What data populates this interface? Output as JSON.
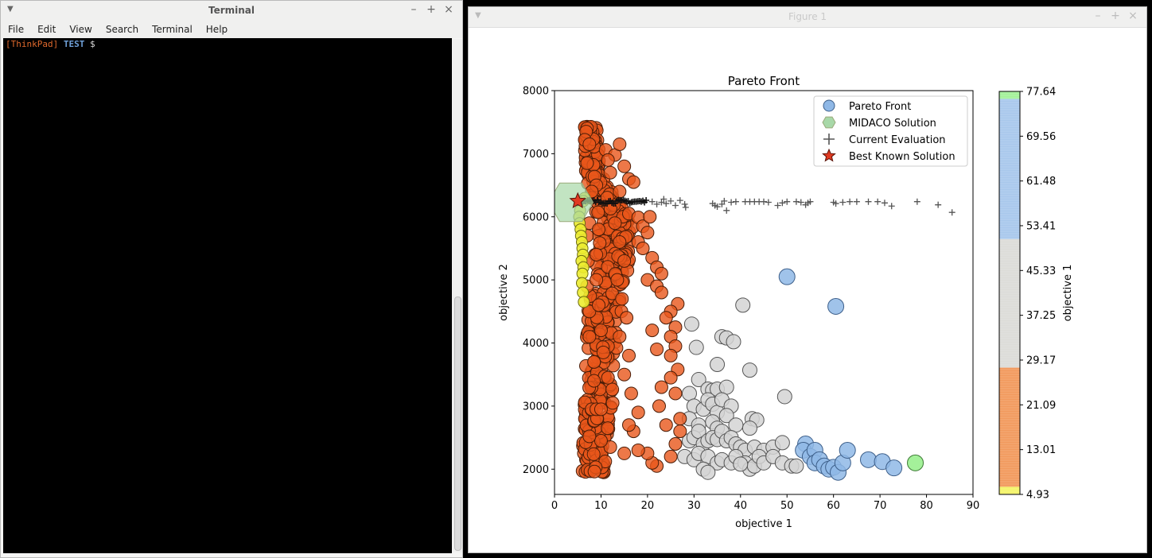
{
  "terminal": {
    "title": "Terminal",
    "menu": [
      "File",
      "Edit",
      "View",
      "Search",
      "Terminal",
      "Help"
    ],
    "prompt_host": "[ThinkPad]",
    "prompt_dir": "TEST",
    "prompt_symbol": "$"
  },
  "figure": {
    "title": "Figure 1"
  },
  "window_buttons": {
    "minimize": "–",
    "maximize": "+",
    "close": "×"
  },
  "colors": {
    "pareto": "#8fb8e6",
    "midaco": "#a8d8a8",
    "current": "#555555",
    "best": "#e03a22",
    "orange": "#e8561a",
    "gray": "#d7d7d7",
    "yellow": "#ecec30"
  },
  "chart_data": {
    "type": "scatter",
    "title": "Pareto Front",
    "xlabel": "objective 1",
    "ylabel": "objective 2",
    "xlim": [
      0,
      90
    ],
    "ylim": [
      1600,
      8000
    ],
    "xticks": [
      "0",
      "10",
      "20",
      "30",
      "40",
      "50",
      "60",
      "70",
      "80",
      "90"
    ],
    "yticks": [
      "2000",
      "3000",
      "4000",
      "5000",
      "6000",
      "7000",
      "8000"
    ],
    "legend": [
      "Pareto Front",
      "MIDACO Solution",
      "Current Evaluation",
      "Best Known Solution"
    ],
    "legend_position": "top-right",
    "colorbar": {
      "label": "objective 1",
      "range": [
        4.93,
        77.64
      ],
      "ticks": [
        "4.93",
        "13.01",
        "21.09",
        "29.17",
        "37.25",
        "45.33",
        "53.41",
        "61.48",
        "69.56",
        "77.64"
      ],
      "bands": [
        {
          "from": 4.93,
          "to": 6.3,
          "color": "#f4f46a"
        },
        {
          "from": 6.3,
          "to": 27.8,
          "color": "#f29a5e"
        },
        {
          "from": 27.8,
          "to": 51.0,
          "color": "#dcdcd8"
        },
        {
          "from": 51.0,
          "to": 76.3,
          "color": "#a9c8ec"
        },
        {
          "from": 76.3,
          "to": 77.64,
          "color": "#a4f19a"
        }
      ]
    },
    "midaco_solution": [
      {
        "x": 3.5,
        "y": 6230
      }
    ],
    "best_known": [
      {
        "x": 5,
        "y": 6250
      }
    ],
    "pareto_front": [
      {
        "x": 50,
        "y": 5050
      },
      {
        "x": 60.5,
        "y": 4580
      },
      {
        "x": 54,
        "y": 2400
      },
      {
        "x": 53.5,
        "y": 2300
      },
      {
        "x": 55,
        "y": 2200
      },
      {
        "x": 56,
        "y": 2300
      },
      {
        "x": 56,
        "y": 2100
      },
      {
        "x": 57,
        "y": 2150
      },
      {
        "x": 58,
        "y": 2050
      },
      {
        "x": 59,
        "y": 2000
      },
      {
        "x": 60,
        "y": 2030
      },
      {
        "x": 61,
        "y": 1950
      },
      {
        "x": 62,
        "y": 2100
      },
      {
        "x": 63,
        "y": 2300
      },
      {
        "x": 67.5,
        "y": 2150
      },
      {
        "x": 70.5,
        "y": 2120
      },
      {
        "x": 73,
        "y": 2020
      }
    ],
    "pareto_highlight": [
      {
        "x": 77.6,
        "y": 2100
      }
    ],
    "gray_points": [
      {
        "x": 29.5,
        "y": 4300
      },
      {
        "x": 30.5,
        "y": 3930
      },
      {
        "x": 36,
        "y": 4100
      },
      {
        "x": 37,
        "y": 4080
      },
      {
        "x": 38.5,
        "y": 4020
      },
      {
        "x": 40.5,
        "y": 4600
      },
      {
        "x": 31,
        "y": 3420
      },
      {
        "x": 35,
        "y": 3660
      },
      {
        "x": 42,
        "y": 3570
      },
      {
        "x": 49.5,
        "y": 3150
      },
      {
        "x": 29,
        "y": 3200
      },
      {
        "x": 33,
        "y": 3270
      },
      {
        "x": 34,
        "y": 3250
      },
      {
        "x": 35,
        "y": 3270
      },
      {
        "x": 37,
        "y": 3300
      },
      {
        "x": 30,
        "y": 3000
      },
      {
        "x": 32,
        "y": 2950
      },
      {
        "x": 33,
        "y": 3100
      },
      {
        "x": 34,
        "y": 3030
      },
      {
        "x": 35,
        "y": 2900
      },
      {
        "x": 36,
        "y": 3100
      },
      {
        "x": 38,
        "y": 3000
      },
      {
        "x": 29,
        "y": 2800
      },
      {
        "x": 31,
        "y": 2700
      },
      {
        "x": 34,
        "y": 2750
      },
      {
        "x": 35,
        "y": 2650
      },
      {
        "x": 37,
        "y": 2850
      },
      {
        "x": 39,
        "y": 2700
      },
      {
        "x": 42.5,
        "y": 2800
      },
      {
        "x": 43.5,
        "y": 2780
      },
      {
        "x": 42,
        "y": 2650
      },
      {
        "x": 29,
        "y": 2450
      },
      {
        "x": 30,
        "y": 2500
      },
      {
        "x": 31,
        "y": 2600
      },
      {
        "x": 32,
        "y": 2400
      },
      {
        "x": 33,
        "y": 2450
      },
      {
        "x": 34,
        "y": 2500
      },
      {
        "x": 35,
        "y": 2470
      },
      {
        "x": 36,
        "y": 2600
      },
      {
        "x": 37,
        "y": 2450
      },
      {
        "x": 38,
        "y": 2500
      },
      {
        "x": 39,
        "y": 2400
      },
      {
        "x": 40,
        "y": 2350
      },
      {
        "x": 41,
        "y": 2300
      },
      {
        "x": 43,
        "y": 2350
      },
      {
        "x": 45,
        "y": 2300
      },
      {
        "x": 47,
        "y": 2350
      },
      {
        "x": 49,
        "y": 2420
      },
      {
        "x": 28,
        "y": 2200
      },
      {
        "x": 30,
        "y": 2150
      },
      {
        "x": 31,
        "y": 2250
      },
      {
        "x": 33,
        "y": 2200
      },
      {
        "x": 35,
        "y": 2100
      },
      {
        "x": 36,
        "y": 2150
      },
      {
        "x": 38,
        "y": 2100
      },
      {
        "x": 39,
        "y": 2200
      },
      {
        "x": 41,
        "y": 2100
      },
      {
        "x": 42,
        "y": 2000
      },
      {
        "x": 43,
        "y": 2050
      },
      {
        "x": 44,
        "y": 2200
      },
      {
        "x": 45,
        "y": 2100
      },
      {
        "x": 47,
        "y": 2200
      },
      {
        "x": 49,
        "y": 2100
      },
      {
        "x": 51,
        "y": 2050
      },
      {
        "x": 52,
        "y": 2050
      },
      {
        "x": 32,
        "y": 2000
      },
      {
        "x": 33,
        "y": 1950
      },
      {
        "x": 40,
        "y": 2080
      }
    ],
    "yellow_points": [
      {
        "x": 5.5,
        "y": 6100
      },
      {
        "x": 5.3,
        "y": 6000
      },
      {
        "x": 5.4,
        "y": 5900
      },
      {
        "x": 5.6,
        "y": 5800
      },
      {
        "x": 5.7,
        "y": 5700
      },
      {
        "x": 5.9,
        "y": 5600
      },
      {
        "x": 6.0,
        "y": 5500
      },
      {
        "x": 6.1,
        "y": 5400
      },
      {
        "x": 5.8,
        "y": 5300
      },
      {
        "x": 6.2,
        "y": 5200
      },
      {
        "x": 6.0,
        "y": 5100
      },
      {
        "x": 5.9,
        "y": 4950
      },
      {
        "x": 6.1,
        "y": 4800
      },
      {
        "x": 6.3,
        "y": 4650
      },
      {
        "x": 6.5,
        "y": 6300
      },
      {
        "x": 6.2,
        "y": 6250
      }
    ],
    "orange_band": [
      {
        "y0": 1950,
        "y1": 7450,
        "x_lo": [
          6,
          6.2,
          6.5,
          7,
          8,
          9.5,
          6.6,
          6.4
        ],
        "x_hi": [
          11,
          12,
          13,
          14,
          16,
          17,
          10,
          9
        ]
      }
    ],
    "orange_points": [
      {
        "x": 7,
        "y": 7400
      },
      {
        "x": 6.8,
        "y": 7350
      },
      {
        "x": 6.5,
        "y": 7220
      },
      {
        "x": 7.5,
        "y": 7150
      },
      {
        "x": 11,
        "y": 7060
      },
      {
        "x": 13,
        "y": 6980
      },
      {
        "x": 14,
        "y": 7150
      },
      {
        "x": 11.5,
        "y": 6900
      },
      {
        "x": 7,
        "y": 6850
      },
      {
        "x": 15,
        "y": 6800
      },
      {
        "x": 12,
        "y": 6700
      },
      {
        "x": 16,
        "y": 6600
      },
      {
        "x": 17,
        "y": 6550
      },
      {
        "x": 9,
        "y": 6500
      },
      {
        "x": 8,
        "y": 6400
      },
      {
        "x": 14,
        "y": 6400
      },
      {
        "x": 16,
        "y": 6050
      },
      {
        "x": 18,
        "y": 5990
      },
      {
        "x": 19,
        "y": 5850
      },
      {
        "x": 20,
        "y": 5750
      },
      {
        "x": 18,
        "y": 5600
      },
      {
        "x": 19,
        "y": 5500
      },
      {
        "x": 21,
        "y": 5350
      },
      {
        "x": 22,
        "y": 5200
      },
      {
        "x": 23,
        "y": 5100
      },
      {
        "x": 20,
        "y": 5000
      },
      {
        "x": 22,
        "y": 4900
      },
      {
        "x": 23,
        "y": 4800
      },
      {
        "x": 26.5,
        "y": 4620
      },
      {
        "x": 25,
        "y": 4500
      },
      {
        "x": 24,
        "y": 4400
      },
      {
        "x": 26,
        "y": 4250
      },
      {
        "x": 25,
        "y": 4100
      },
      {
        "x": 26,
        "y": 3950
      },
      {
        "x": 25,
        "y": 3800
      },
      {
        "x": 26.5,
        "y": 3580
      },
      {
        "x": 25,
        "y": 3450
      },
      {
        "x": 26,
        "y": 3200
      },
      {
        "x": 27,
        "y": 2800
      },
      {
        "x": 27,
        "y": 2600
      },
      {
        "x": 26,
        "y": 2400
      },
      {
        "x": 25,
        "y": 2200
      },
      {
        "x": 22,
        "y": 2050
      },
      {
        "x": 21,
        "y": 2100
      },
      {
        "x": 20,
        "y": 2250
      },
      {
        "x": 18,
        "y": 2300
      },
      {
        "x": 15,
        "y": 2250
      },
      {
        "x": 12,
        "y": 2350
      },
      {
        "x": 10,
        "y": 2450
      },
      {
        "x": 7.5,
        "y": 2520
      },
      {
        "x": 8,
        "y": 2950
      },
      {
        "x": 9,
        "y": 2950
      },
      {
        "x": 10,
        "y": 2950
      },
      {
        "x": 8.5,
        "y": 3400
      },
      {
        "x": 8.5,
        "y": 3700
      },
      {
        "x": 7.5,
        "y": 4100
      },
      {
        "x": 7.5,
        "y": 4500
      },
      {
        "x": 7,
        "y": 4900
      },
      {
        "x": 7.2,
        "y": 5300
      },
      {
        "x": 7,
        "y": 5700
      },
      {
        "x": 7.5,
        "y": 5900
      },
      {
        "x": 13,
        "y": 5900
      },
      {
        "x": 14,
        "y": 5600
      },
      {
        "x": 15,
        "y": 5300
      },
      {
        "x": 13.5,
        "y": 5000
      },
      {
        "x": 14.5,
        "y": 4700
      },
      {
        "x": 15.5,
        "y": 4400
      },
      {
        "x": 14,
        "y": 4100
      },
      {
        "x": 16,
        "y": 3800
      },
      {
        "x": 15,
        "y": 3500
      },
      {
        "x": 16.5,
        "y": 3200
      },
      {
        "x": 18,
        "y": 2900
      },
      {
        "x": 17,
        "y": 2600
      },
      {
        "x": 16,
        "y": 2700
      },
      {
        "x": 12.5,
        "y": 3050
      },
      {
        "x": 11.5,
        "y": 3450
      },
      {
        "x": 10.5,
        "y": 3850
      },
      {
        "x": 10,
        "y": 4200
      },
      {
        "x": 9.5,
        "y": 4600
      },
      {
        "x": 9,
        "y": 5000
      },
      {
        "x": 9,
        "y": 5400
      },
      {
        "x": 9.5,
        "y": 5800
      },
      {
        "x": 20.5,
        "y": 6000
      },
      {
        "x": 21,
        "y": 4200
      },
      {
        "x": 22,
        "y": 3900
      },
      {
        "x": 23,
        "y": 3300
      },
      {
        "x": 22.5,
        "y": 3000
      },
      {
        "x": 24,
        "y": 2700
      }
    ],
    "current_evaluation": [
      {
        "x": 21,
        "y": 6240
      },
      {
        "x": 22,
        "y": 6200
      },
      {
        "x": 23,
        "y": 6230
      },
      {
        "x": 23.5,
        "y": 6280
      },
      {
        "x": 24,
        "y": 6210
      },
      {
        "x": 25,
        "y": 6250
      },
      {
        "x": 26,
        "y": 6180
      },
      {
        "x": 27,
        "y": 6260
      },
      {
        "x": 28,
        "y": 6200
      },
      {
        "x": 28.2,
        "y": 6150
      },
      {
        "x": 34,
        "y": 6210
      },
      {
        "x": 34.5,
        "y": 6180
      },
      {
        "x": 35,
        "y": 6160
      },
      {
        "x": 36,
        "y": 6200
      },
      {
        "x": 36.5,
        "y": 6250
      },
      {
        "x": 37,
        "y": 6100
      },
      {
        "x": 38,
        "y": 6230
      },
      {
        "x": 39,
        "y": 6240
      },
      {
        "x": 41,
        "y": 6240
      },
      {
        "x": 42,
        "y": 6240
      },
      {
        "x": 43,
        "y": 6240
      },
      {
        "x": 44,
        "y": 6240
      },
      {
        "x": 45,
        "y": 6240
      },
      {
        "x": 46,
        "y": 6230
      },
      {
        "x": 48,
        "y": 6180
      },
      {
        "x": 49,
        "y": 6220
      },
      {
        "x": 50,
        "y": 6240
      },
      {
        "x": 52,
        "y": 6240
      },
      {
        "x": 53,
        "y": 6230
      },
      {
        "x": 54,
        "y": 6190
      },
      {
        "x": 54.5,
        "y": 6220
      },
      {
        "x": 55,
        "y": 6240
      },
      {
        "x": 60,
        "y": 6230
      },
      {
        "x": 60.5,
        "y": 6210
      },
      {
        "x": 62,
        "y": 6230
      },
      {
        "x": 63.5,
        "y": 6240
      },
      {
        "x": 65,
        "y": 6240
      },
      {
        "x": 67.5,
        "y": 6240
      },
      {
        "x": 69.5,
        "y": 6240
      },
      {
        "x": 71,
        "y": 6220
      },
      {
        "x": 72.5,
        "y": 6170
      },
      {
        "x": 78,
        "y": 6240
      },
      {
        "x": 82.5,
        "y": 6190
      },
      {
        "x": 85.5,
        "y": 6070
      }
    ]
  }
}
